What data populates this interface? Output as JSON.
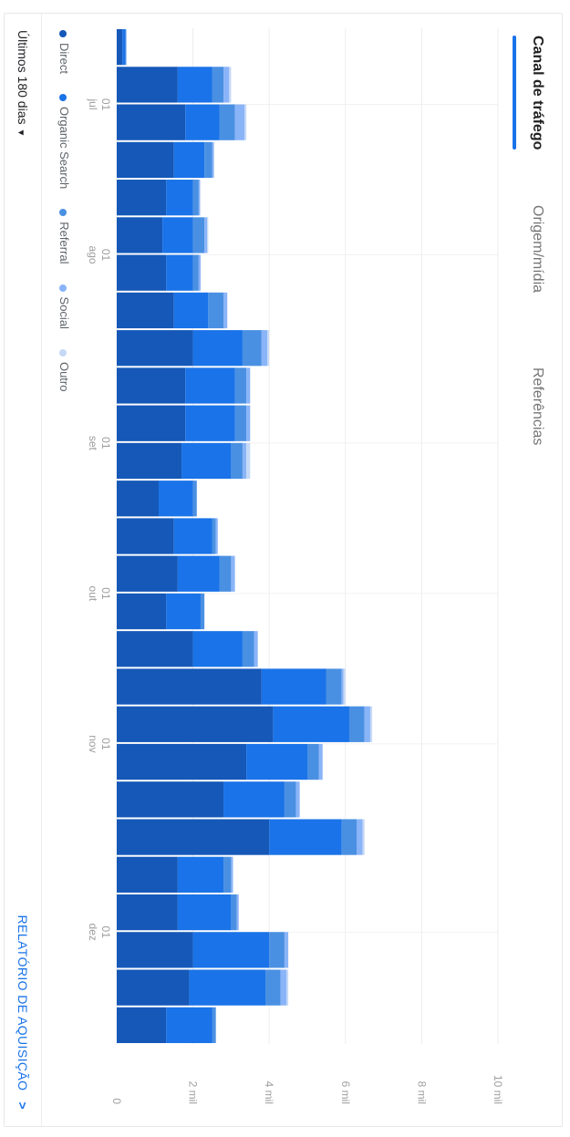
{
  "tabs": [
    {
      "label": "Canal de tráfego",
      "active": true
    },
    {
      "label": "Origem/mídia",
      "active": false
    },
    {
      "label": "Referências",
      "active": false
    }
  ],
  "legend": [
    {
      "name": "Direct",
      "color": "#1558b8"
    },
    {
      "name": "Organic Search",
      "color": "#1a73e8"
    },
    {
      "name": "Referral",
      "color": "#4a90e2"
    },
    {
      "name": "Social",
      "color": "#8ab4f8"
    },
    {
      "name": "Outro",
      "color": "#c5d9f6"
    }
  ],
  "footer": {
    "date_range": "Últimos 180 dias",
    "report_link": "RELATÓRIO DE AQUISIÇÃO"
  },
  "chart_data": {
    "type": "bar",
    "stacked": true,
    "x_tick_labels": [
      {
        "day": "01",
        "month": "jul",
        "index": 2
      },
      {
        "day": "01",
        "month": "ago",
        "index": 6
      },
      {
        "day": "01",
        "month": "set",
        "index": 11
      },
      {
        "day": "01",
        "month": "out",
        "index": 15
      },
      {
        "day": "01",
        "month": "nov",
        "index": 19
      },
      {
        "day": "01",
        "month": "dez",
        "index": 24
      }
    ],
    "y_ticks": [
      "0",
      "2 mil",
      "4 mil",
      "6 mil",
      "8 mil",
      "10 mil"
    ],
    "ylim": [
      0,
      10000
    ],
    "grid": true,
    "legend_position": "bottom",
    "series": [
      {
        "name": "Direct",
        "values": [
          150,
          1600,
          1800,
          1500,
          1300,
          1200,
          1300,
          1500,
          2000,
          1800,
          1800,
          1700,
          1100,
          1500,
          1600,
          1300,
          2000,
          3800,
          4100,
          3400,
          2800,
          4000,
          1600,
          1600,
          2000,
          1900,
          1300
        ]
      },
      {
        "name": "Organic Search",
        "values": [
          80,
          900,
          900,
          800,
          700,
          800,
          700,
          900,
          1300,
          1300,
          1300,
          1300,
          900,
          1000,
          1100,
          900,
          1300,
          1700,
          2000,
          1600,
          1600,
          1900,
          1200,
          1400,
          2000,
          2000,
          1200
        ]
      },
      {
        "name": "Referral",
        "values": [
          20,
          300,
          400,
          200,
          150,
          300,
          150,
          400,
          500,
          300,
          300,
          300,
          100,
          100,
          300,
          100,
          300,
          400,
          400,
          300,
          300,
          400,
          200,
          150,
          400,
          400,
          100
        ]
      },
      {
        "name": "Social",
        "values": [
          0,
          150,
          250,
          50,
          30,
          70,
          50,
          100,
          150,
          100,
          100,
          100,
          0,
          50,
          100,
          0,
          100,
          50,
          150,
          100,
          100,
          150,
          50,
          50,
          100,
          150,
          0
        ]
      },
      {
        "name": "Outro",
        "values": [
          0,
          50,
          50,
          0,
          20,
          30,
          0,
          0,
          50,
          0,
          0,
          100,
          0,
          0,
          0,
          0,
          0,
          50,
          50,
          0,
          0,
          50,
          0,
          0,
          0,
          50,
          0
        ]
      }
    ]
  }
}
